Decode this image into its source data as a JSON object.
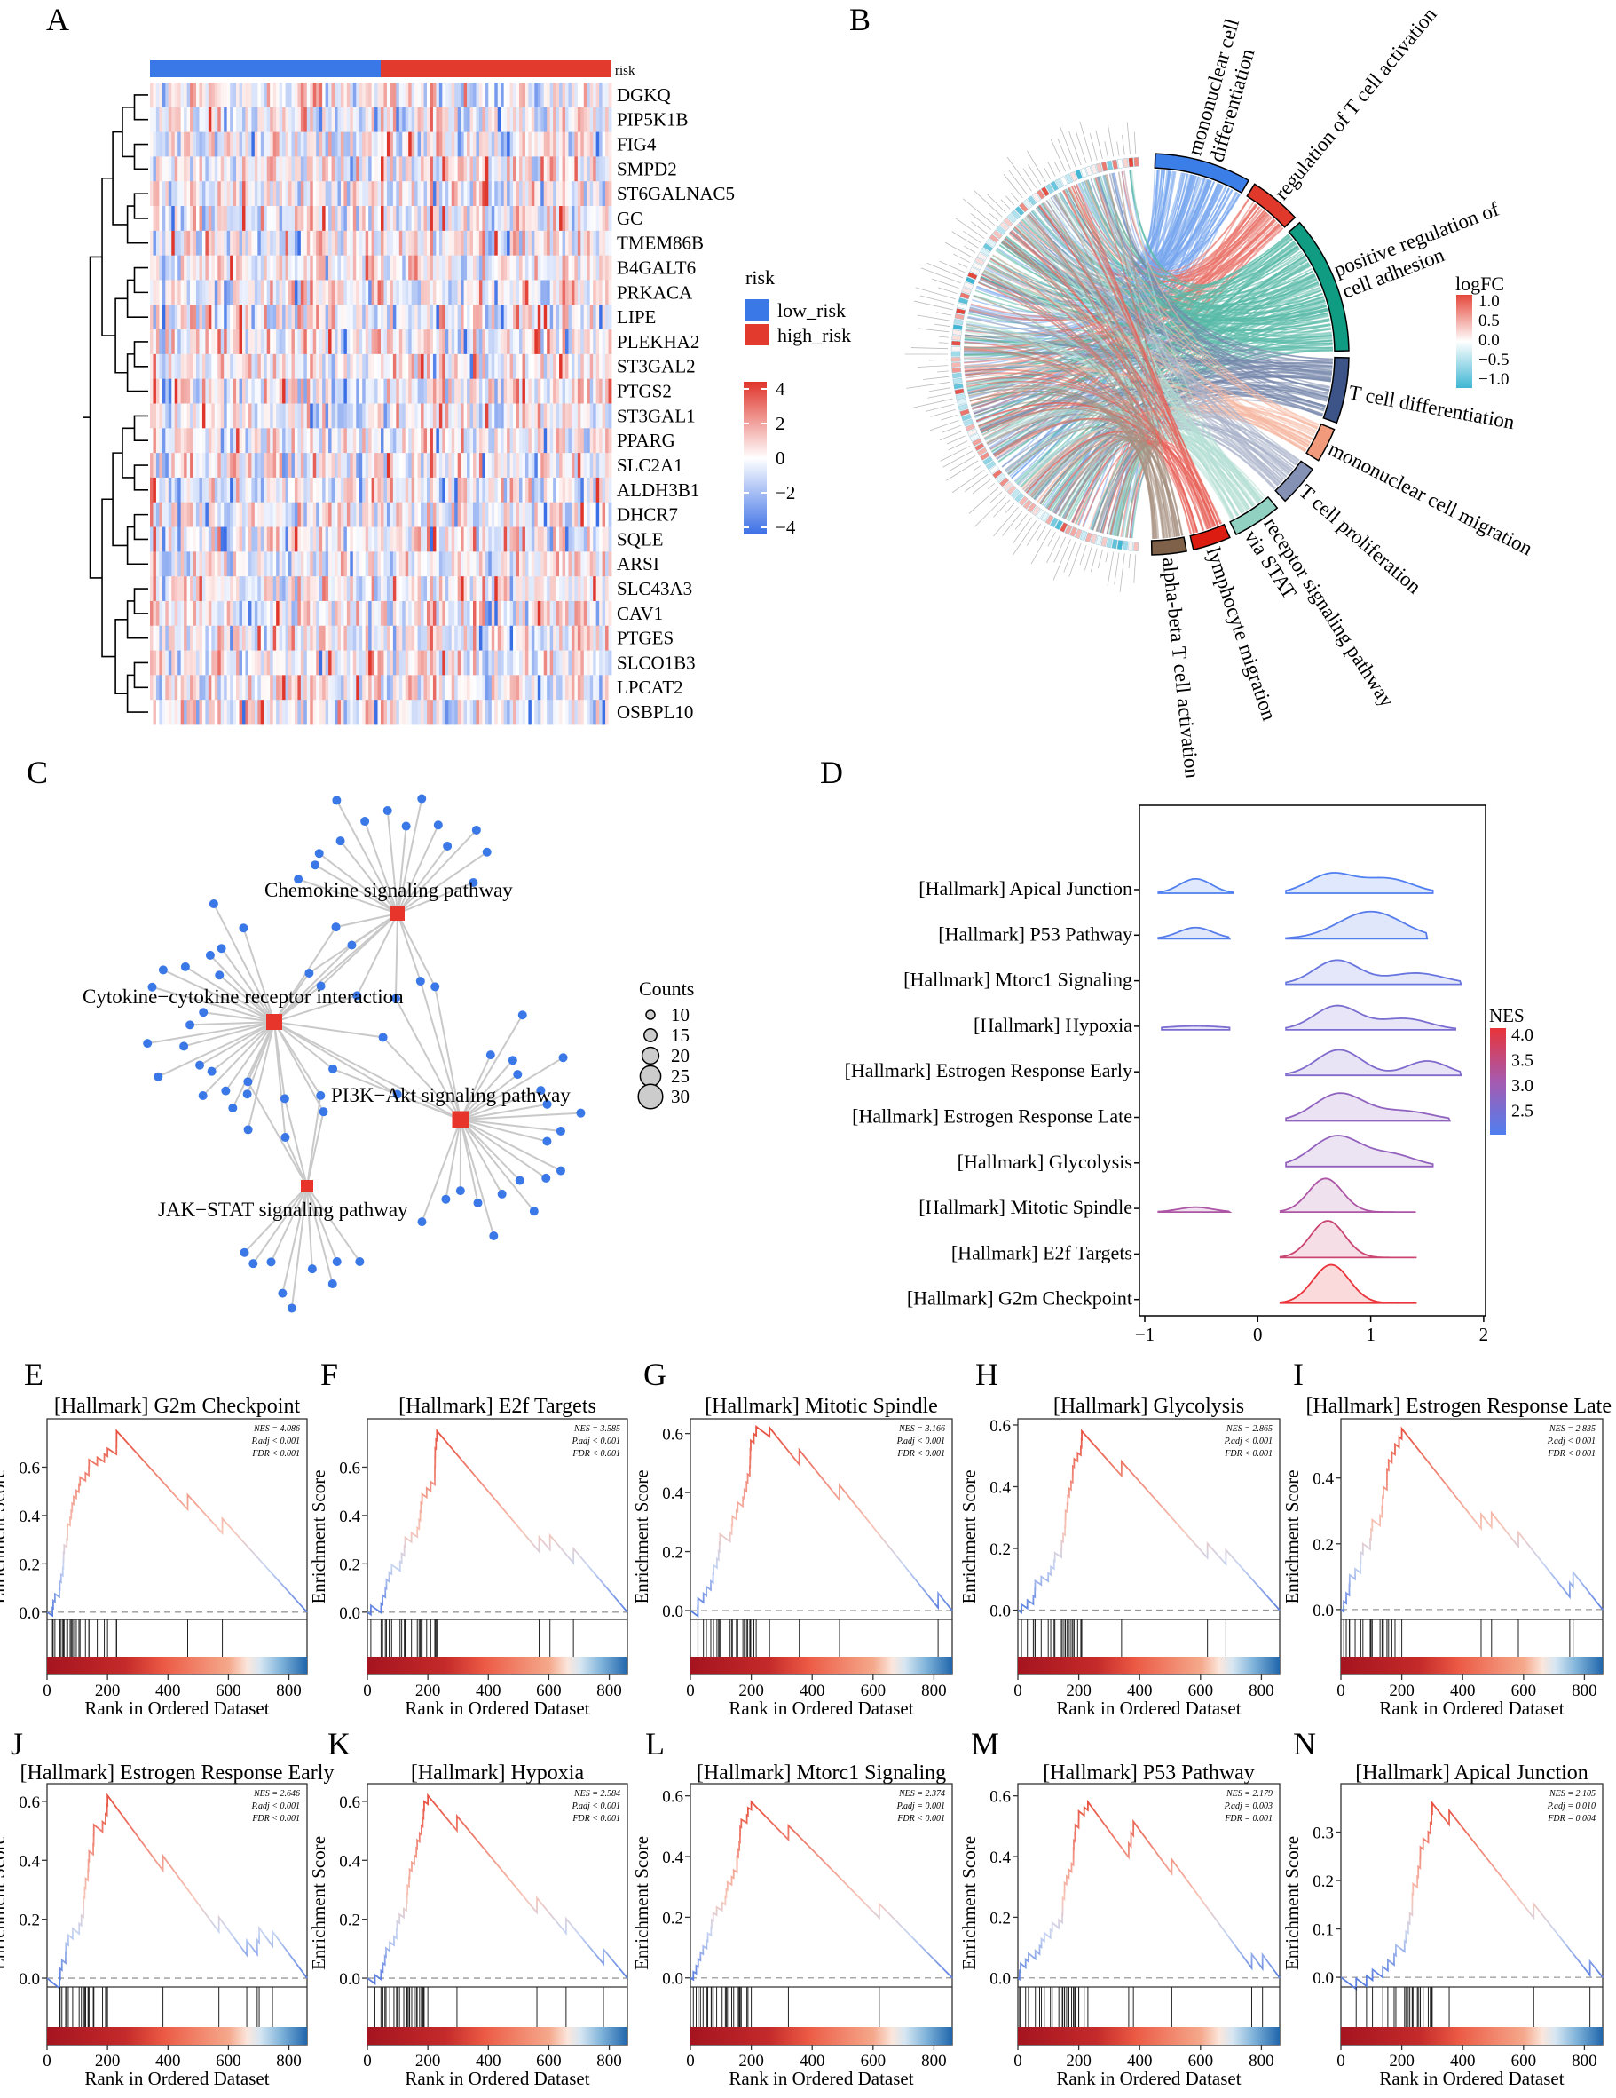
{
  "panel_labels": {
    "A": "A",
    "B": "B",
    "C": "C",
    "D": "D",
    "E": "E",
    "F": "F",
    "G": "G",
    "H": "H",
    "I": "I",
    "J": "J",
    "K": "K",
    "L": "L",
    "M": "M",
    "N": "N"
  },
  "heatmap": {
    "annotation_label": "risk",
    "genes": [
      "DGKQ",
      "PIP5K1B",
      "FIG4",
      "SMPD2",
      "ST6GALNAC5",
      "GC",
      "TMEM86B",
      "B4GALT6",
      "PRKACA",
      "LIPE",
      "PLEKHA2",
      "ST3GAL2",
      "PTGS2",
      "ST3GAL1",
      "PPARG",
      "SLC2A1",
      "ALDH3B1",
      "DHCR7",
      "SQLE",
      "ARSI",
      "SLC43A3",
      "CAV1",
      "PTGES",
      "SLCO1B3",
      "LPCAT2",
      "OSBPL10"
    ],
    "risk_legend": {
      "title": "risk",
      "items": [
        {
          "label": "low_risk",
          "color": "#3b78e7"
        },
        {
          "label": "high_risk",
          "color": "#e23b2e"
        }
      ]
    },
    "scale_legend": {
      "ticks": [
        "4",
        "2",
        "0",
        "−2",
        "−4"
      ],
      "low_color": "#3b6fe6",
      "mid_color": "#ffffff",
      "high_color": "#e0352b"
    }
  },
  "chord": {
    "terms": [
      {
        "lines": [
          "mononuclear cell",
          "differentiation"
        ],
        "color": "#3c7ee8"
      },
      {
        "lines": [
          "regulation of T cell activation"
        ],
        "color": "#e0392c"
      },
      {
        "lines": [
          "positive regulation of",
          "cell adhesion"
        ],
        "color": "#0f9c82"
      },
      {
        "lines": [
          "T cell differentiation"
        ],
        "color": "#3c5488"
      },
      {
        "lines": [
          "mononuclear cell migration"
        ],
        "color": "#f29a7c"
      },
      {
        "lines": [
          "T cell proliferation"
        ],
        "color": "#8491b4"
      },
      {
        "lines": [
          "receptor signaling pathway",
          "via STAT"
        ],
        "color": "#91d1c2"
      },
      {
        "lines": [
          "lymphocyte migration"
        ],
        "color": "#dc1c10"
      },
      {
        "lines": [
          "alpha-beta T cell activation"
        ],
        "color": "#7e6148"
      }
    ],
    "legend": {
      "title": "logFC",
      "ticks": [
        "1.0",
        "0.5",
        "0.0",
        "−0.5",
        "−1.0"
      ],
      "high_color": "#e5473a",
      "low_color": "#3fb6d3"
    }
  },
  "network": {
    "pathways": [
      {
        "label": "Chemokine signaling pathway"
      },
      {
        "label": "Cytokine−cytokine receptor interaction"
      },
      {
        "label": "PI3K−Akt signaling pathway"
      },
      {
        "label": "JAK−STAT signaling pathway"
      }
    ],
    "hub_color": "#e8352b",
    "gene_color": "#3b78e7",
    "legend": {
      "title": "Counts",
      "sizes": [
        "10",
        "15",
        "20",
        "25",
        "30"
      ]
    }
  },
  "chart_data": [
    {
      "type": "ridgeline",
      "xlim": [
        -1,
        2
      ],
      "x_ticks": [
        "−1",
        "0",
        "1",
        "2"
      ],
      "legend": {
        "title": "NES",
        "ticks": [
          "4.0",
          "3.5",
          "3.0",
          "2.5"
        ],
        "placement": "right"
      },
      "series": [
        {
          "name": "[Hallmark] Apical Junction",
          "nes": 2.105,
          "segments": [
            [
              -0.88,
              -0.22
            ],
            [
              0.25,
              1.55
            ]
          ],
          "modes": [
            [
              -0.55,
              0.14,
              0.45
            ],
            [
              0.65,
              0.2,
              0.6
            ],
            [
              1.15,
              0.22,
              0.45
            ]
          ]
        },
        {
          "name": "[Hallmark] P53 Pathway",
          "nes": 2.179,
          "segments": [
            [
              -0.88,
              -0.25
            ],
            [
              0.25,
              1.5
            ]
          ],
          "modes": [
            [
              -0.55,
              0.15,
              0.35
            ],
            [
              1.0,
              0.28,
              0.85
            ]
          ]
        },
        {
          "name": "[Hallmark] Mtorc1 Signaling",
          "nes": 2.374,
          "segments": [
            [
              0.25,
              1.8
            ]
          ],
          "modes": [
            [
              0.7,
              0.2,
              0.75
            ],
            [
              1.4,
              0.25,
              0.35
            ]
          ]
        },
        {
          "name": "[Hallmark] Hypoxia",
          "nes": 2.584,
          "segments": [
            [
              -0.85,
              -0.25
            ],
            [
              0.25,
              1.75
            ]
          ],
          "modes": [
            [
              -0.55,
              0.3,
              0.12
            ],
            [
              0.7,
              0.2,
              0.75
            ],
            [
              1.3,
              0.22,
              0.35
            ]
          ]
        },
        {
          "name": "[Hallmark] Estrogen Response Early",
          "nes": 2.646,
          "segments": [
            [
              0.25,
              1.8
            ]
          ],
          "modes": [
            [
              0.72,
              0.2,
              0.8
            ],
            [
              1.5,
              0.18,
              0.45
            ]
          ]
        },
        {
          "name": "[Hallmark] Estrogen Response Late",
          "nes": 2.835,
          "segments": [
            [
              0.25,
              1.7
            ]
          ],
          "modes": [
            [
              0.72,
              0.22,
              0.85
            ],
            [
              1.3,
              0.25,
              0.3
            ]
          ]
        },
        {
          "name": "[Hallmark] Glycolysis",
          "nes": 2.865,
          "segments": [
            [
              0.25,
              1.55
            ]
          ],
          "modes": [
            [
              0.7,
              0.22,
              0.95
            ],
            [
              1.2,
              0.2,
              0.35
            ]
          ]
        },
        {
          "name": "[Hallmark] Mitotic Spindle",
          "nes": 3.166,
          "segments": [
            [
              -0.88,
              -0.25
            ],
            [
              0.2,
              1.4
            ]
          ],
          "modes": [
            [
              -0.55,
              0.15,
              0.15
            ],
            [
              0.6,
              0.15,
              1.05
            ]
          ]
        },
        {
          "name": "[Hallmark] E2f Targets",
          "nes": 3.585,
          "segments": [
            [
              0.2,
              1.4
            ]
          ],
          "modes": [
            [
              0.62,
              0.15,
              1.15
            ]
          ]
        },
        {
          "name": "[Hallmark] G2m Checkpoint",
          "nes": 4.086,
          "segments": [
            [
              0.2,
              1.4
            ]
          ],
          "modes": [
            [
              0.65,
              0.16,
              1.2
            ]
          ]
        }
      ]
    },
    {
      "type": "line",
      "panel": "E",
      "title": "[Hallmark] G2m Checkpoint",
      "stats": [
        "NES = 4.086",
        "P.adj < 0.001",
        "FDR < 0.001"
      ],
      "xlabel": "Rank in Ordered Dataset",
      "ylabel": "Enrichment Score",
      "x_ticks": [
        "0",
        "200",
        "400",
        "600",
        "800"
      ],
      "xlim": [
        0,
        860
      ],
      "y_ticks": [
        "0.0",
        "0.2",
        "0.4",
        "0.6"
      ],
      "ylim": [
        -0.03,
        0.8
      ],
      "peak_es": 0.75,
      "peak_rank": 230
    },
    {
      "type": "line",
      "panel": "F",
      "title": "[Hallmark] E2f Targets",
      "stats": [
        "NES = 3.585",
        "P.adj < 0.001",
        "FDR < 0.001"
      ],
      "xlabel": "Rank in Ordered Dataset",
      "ylabel": "Enrichment Score",
      "x_ticks": [
        "0",
        "200",
        "400",
        "600",
        "800"
      ],
      "xlim": [
        0,
        860
      ],
      "y_ticks": [
        "0.0",
        "0.2",
        "0.4",
        "0.6"
      ],
      "ylim": [
        -0.03,
        0.8
      ],
      "peak_es": 0.75,
      "peak_rank": 230
    },
    {
      "type": "line",
      "panel": "G",
      "title": "[Hallmark] Mitotic Spindle",
      "stats": [
        "NES = 3.166",
        "P.adj < 0.001",
        "FDR < 0.001"
      ],
      "xlabel": "Rank in Ordered Dataset",
      "ylabel": "Enrichment Score",
      "x_ticks": [
        "0",
        "200",
        "400",
        "600",
        "800"
      ],
      "xlim": [
        0,
        860
      ],
      "y_ticks": [
        "0.0",
        "0.2",
        "0.4",
        "0.6"
      ],
      "ylim": [
        -0.03,
        0.65
      ],
      "peak_es": 0.62,
      "peak_rank": 260
    },
    {
      "type": "line",
      "panel": "H",
      "title": "[Hallmark] Glycolysis",
      "stats": [
        "NES = 2.865",
        "P.adj < 0.001",
        "FDR < 0.001"
      ],
      "xlabel": "Rank in Ordered Dataset",
      "ylabel": "Enrichment Score",
      "x_ticks": [
        "0",
        "200",
        "400",
        "600",
        "800"
      ],
      "xlim": [
        0,
        860
      ],
      "y_ticks": [
        "0.0",
        "0.2",
        "0.4",
        "0.6"
      ],
      "ylim": [
        -0.03,
        0.62
      ],
      "peak_es": 0.58,
      "peak_rank": 210
    },
    {
      "type": "line",
      "panel": "I",
      "title": "[Hallmark] Estrogen Response Late",
      "stats": [
        "NES = 2.835",
        "P.adj < 0.001",
        "FDR < 0.001"
      ],
      "xlabel": "Rank in Ordered Dataset",
      "ylabel": "Enrichment Score",
      "x_ticks": [
        "0",
        "200",
        "400",
        "600",
        "800"
      ],
      "xlim": [
        0,
        860
      ],
      "y_ticks": [
        "0.0",
        "0.2",
        "0.4"
      ],
      "ylim": [
        -0.03,
        0.58
      ],
      "peak_es": 0.55,
      "peak_rank": 200
    },
    {
      "type": "line",
      "panel": "J",
      "title": "[Hallmark] Estrogen Response Early",
      "stats": [
        "NES = 2.646",
        "P.adj < 0.001",
        "FDR < 0.001"
      ],
      "xlabel": "Rank in Ordered Dataset",
      "ylabel": "Enrichment Score",
      "x_ticks": [
        "0",
        "200",
        "400",
        "600",
        "800"
      ],
      "xlim": [
        0,
        860
      ],
      "y_ticks": [
        "0.0",
        "0.2",
        "0.4",
        "0.6"
      ],
      "ylim": [
        -0.03,
        0.66
      ],
      "peak_es": 0.62,
      "peak_rank": 200
    },
    {
      "type": "line",
      "panel": "K",
      "title": "[Hallmark] Hypoxia",
      "stats": [
        "NES = 2.584",
        "P.adj < 0.001",
        "FDR < 0.001"
      ],
      "xlabel": "Rank in Ordered Dataset",
      "ylabel": "Enrichment Score",
      "x_ticks": [
        "0",
        "200",
        "400",
        "600",
        "800"
      ],
      "xlim": [
        0,
        860
      ],
      "y_ticks": [
        "0.0",
        "0.2",
        "0.4",
        "0.6"
      ],
      "ylim": [
        -0.03,
        0.66
      ],
      "peak_es": 0.62,
      "peak_rank": 200
    },
    {
      "type": "line",
      "panel": "L",
      "title": "[Hallmark] Mtorc1 Signaling",
      "stats": [
        "NES = 2.374",
        "P.adj = 0.001",
        "FDR < 0.001"
      ],
      "xlabel": "Rank in Ordered Dataset",
      "ylabel": "Enrichment Score",
      "x_ticks": [
        "0",
        "200",
        "400",
        "600",
        "800"
      ],
      "xlim": [
        0,
        860
      ],
      "y_ticks": [
        "0.0",
        "0.2",
        "0.4",
        "0.6"
      ],
      "ylim": [
        -0.03,
        0.64
      ],
      "peak_es": 0.58,
      "peak_rank": 200
    },
    {
      "type": "line",
      "panel": "M",
      "title": "[Hallmark] P53 Pathway",
      "stats": [
        "NES = 2.179",
        "P.adj = 0.003",
        "FDR = 0.001"
      ],
      "xlabel": "Rank in Ordered Dataset",
      "ylabel": "Enrichment Score",
      "x_ticks": [
        "0",
        "200",
        "400",
        "600",
        "800"
      ],
      "xlim": [
        0,
        860
      ],
      "y_ticks": [
        "0.0",
        "0.2",
        "0.4",
        "0.6"
      ],
      "ylim": [
        -0.03,
        0.64
      ],
      "peak_es": 0.58,
      "peak_rank": 230
    },
    {
      "type": "line",
      "panel": "N",
      "title": "[Hallmark] Apical Junction",
      "stats": [
        "NES = 2.105",
        "P.adj = 0.010",
        "FDR = 0.004"
      ],
      "xlabel": "Rank in Ordered Dataset",
      "ylabel": "Enrichment Score",
      "x_ticks": [
        "0",
        "200",
        "400",
        "600",
        "800"
      ],
      "xlim": [
        0,
        860
      ],
      "y_ticks": [
        "0.0",
        "0.1",
        "0.2",
        "0.3"
      ],
      "ylim": [
        -0.02,
        0.4
      ],
      "peak_es": 0.36,
      "peak_rank": 300
    }
  ]
}
